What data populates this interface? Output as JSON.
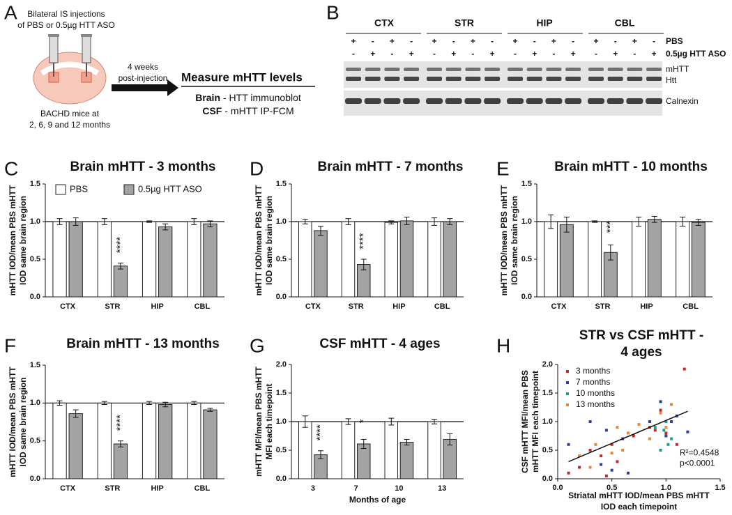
{
  "panel_labels": [
    "A",
    "B",
    "C",
    "D",
    "E",
    "F",
    "G",
    "H"
  ],
  "panel_a": {
    "injection_text": [
      "Bilateral IS injections",
      "of PBS or 0.5µg HTT ASO"
    ],
    "mice_text": [
      "BACHD mice at",
      "2, 6, 9 and 12 months"
    ],
    "arrow_text": [
      "4 weeks",
      "post-injection"
    ],
    "measure_title": "Measure mHTT levels",
    "methods": [
      {
        "tissue": "Brain",
        "method": "- HTT immunoblot"
      },
      {
        "tissue": "CSF",
        "method": "- mHTT IP-FCM"
      }
    ]
  },
  "panel_b": {
    "regions": [
      "CTX",
      "STR",
      "HIP",
      "CBL"
    ],
    "pbs_label": "PBS",
    "aso_label": "0.5µg HTT ASO",
    "pbs_lanes": [
      "+",
      "-",
      "+",
      "-",
      "+",
      "-",
      "+",
      "-",
      "+",
      "-",
      "+",
      "-",
      "+",
      "-",
      "+",
      "-"
    ],
    "aso_lanes": [
      "-",
      "+",
      "-",
      "+",
      "-",
      "+",
      "-",
      "+",
      "-",
      "+",
      "-",
      "+",
      "-",
      "+",
      "-",
      "+"
    ],
    "band_labels": [
      "mHTT",
      "Htt",
      "Calnexin"
    ]
  },
  "chart_data": [
    {
      "type": "bar",
      "title": "Brain mHTT - 3 months",
      "ylabel": [
        "mHTT IOD/mean PBS mHTT",
        "IOD same brain region"
      ],
      "categories": [
        "CTX",
        "STR",
        "HIP",
        "CBL"
      ],
      "series": [
        {
          "name": "PBS",
          "color": "#ffffff",
          "values": [
            1.0,
            1.0,
            1.0,
            1.0
          ],
          "errors": [
            0.04,
            0.04,
            0.01,
            0.04
          ]
        },
        {
          "name": "0.5µg HTT ASO",
          "color": "#a3a3a3",
          "values": [
            1.0,
            0.41,
            0.93,
            0.97
          ],
          "errors": [
            0.05,
            0.04,
            0.04,
            0.04
          ],
          "significance": [
            null,
            "****",
            null,
            null
          ]
        }
      ],
      "ylim": [
        0,
        1.5
      ],
      "yticks": [
        {
          "value": 0,
          "label": "0.0"
        },
        {
          "value": 0.5,
          "label": "0.5"
        },
        {
          "value": 1,
          "label": "1.0"
        },
        {
          "value": 1.5,
          "label": "1.5"
        }
      ],
      "hline": 1.0
    },
    {
      "type": "bar",
      "title": "Brain mHTT - 7 months",
      "ylabel": [
        "mHTT IOD/mean PBS mHTT",
        "IOD same brain region"
      ],
      "categories": [
        "CTX",
        "STR",
        "HIP",
        "CBL"
      ],
      "series": [
        {
          "color": "#ffffff",
          "values": [
            1.0,
            1.0,
            0.99,
            1.0
          ],
          "errors": [
            0.03,
            0.04,
            0.02,
            0.05
          ]
        },
        {
          "color": "#a3a3a3",
          "values": [
            0.88,
            0.43,
            1.01,
            1.0
          ],
          "errors": [
            0.06,
            0.07,
            0.05,
            0.04
          ],
          "significance": [
            null,
            "****",
            null,
            null
          ]
        }
      ],
      "ylim": [
        0,
        1.5
      ],
      "yticks": [
        {
          "value": 0,
          "label": "0.0"
        },
        {
          "value": 0.5,
          "label": "0.5"
        },
        {
          "value": 1,
          "label": "1.0"
        },
        {
          "value": 1.5,
          "label": "1.5"
        }
      ],
      "hline": 1.0
    },
    {
      "type": "bar",
      "title": "Brain mHTT - 10 months",
      "ylabel": [
        "mHTT IOD/mean PBS mHTT",
        "IOD same brain region"
      ],
      "categories": [
        "CTX",
        "STR",
        "HIP",
        "CBL"
      ],
      "series": [
        {
          "color": "#ffffff",
          "values": [
            1.0,
            1.0,
            1.0,
            1.0
          ],
          "errors": [
            0.09,
            0.01,
            0.06,
            0.06
          ]
        },
        {
          "color": "#a3a3a3",
          "values": [
            0.96,
            0.59,
            1.03,
            0.99
          ],
          "errors": [
            0.1,
            0.1,
            0.04,
            0.04
          ],
          "significance": [
            null,
            "***",
            null,
            null
          ]
        }
      ],
      "ylim": [
        0,
        1.5
      ],
      "yticks": [
        {
          "value": 0,
          "label": "0.0"
        },
        {
          "value": 0.5,
          "label": "0.5"
        },
        {
          "value": 1,
          "label": "1.0"
        },
        {
          "value": 1.5,
          "label": "1.5"
        }
      ],
      "hline": 1.0
    },
    {
      "type": "bar",
      "title": "Brain mHTT - 13 months",
      "ylabel": [
        "mHTT IOD/mean PBS mHTT",
        "IOD same brain region"
      ],
      "categories": [
        "CTX",
        "STR",
        "HIP",
        "CBL"
      ],
      "series": [
        {
          "color": "#ffffff",
          "values": [
            1.0,
            1.0,
            1.0,
            1.0
          ],
          "errors": [
            0.03,
            0.02,
            0.02,
            0.02
          ]
        },
        {
          "color": "#a3a3a3",
          "values": [
            0.86,
            0.46,
            0.98,
            0.91
          ],
          "errors": [
            0.05,
            0.04,
            0.03,
            0.02
          ],
          "significance": [
            null,
            "****",
            null,
            null
          ]
        }
      ],
      "ylim": [
        0,
        1.5
      ],
      "yticks": [
        {
          "value": 0,
          "label": "0.0"
        },
        {
          "value": 0.5,
          "label": "0.5"
        },
        {
          "value": 1,
          "label": "1.0"
        },
        {
          "value": 1.5,
          "label": "1.5"
        }
      ],
      "hline": 1.0
    },
    {
      "type": "bar",
      "title": "CSF mHTT - 4 ages",
      "ylabel": [
        "mHTT MFI/mean PBS mHTT",
        "MFI each timepoint"
      ],
      "xlabel": [
        "Months of age"
      ],
      "categories": [
        "3",
        "7",
        "10",
        "13"
      ],
      "series": [
        {
          "color": "#ffffff",
          "values": [
            1.0,
            1.0,
            1.0,
            1.0
          ],
          "errors": [
            0.1,
            0.05,
            0.06,
            0.04
          ]
        },
        {
          "color": "#a3a3a3",
          "values": [
            0.42,
            0.61,
            0.64,
            0.69
          ],
          "errors": [
            0.07,
            0.08,
            0.05,
            0.1
          ],
          "significance": [
            "****",
            "*",
            null,
            null
          ]
        }
      ],
      "ylim": [
        0,
        2
      ],
      "yticks": [
        {
          "value": 0,
          "label": "0.0"
        },
        {
          "value": 0.5,
          "label": "0.5"
        },
        {
          "value": 1,
          "label": "1.0"
        },
        {
          "value": 1.5,
          "label": "1.5"
        },
        {
          "value": 2,
          "label": "2.0"
        }
      ],
      "hline": 1.0
    },
    {
      "type": "scatter",
      "title": [
        "STR vs CSF mHTT -",
        "4 ages"
      ],
      "ylabel": [
        "CSF mHTT MFI/mean PBS",
        "mHTT MFI each timepoint"
      ],
      "xlabel": [
        "Striatal mHTT IOD/mean PBS mHTT",
        "IOD each timepoint"
      ],
      "series": [
        {
          "name": "3 months",
          "color": "#c62828",
          "x": [
            0.1,
            0.2,
            0.3,
            0.45,
            0.5,
            0.55,
            0.7,
            0.85,
            0.95,
            1.0,
            1.1,
            1.17,
            0.4,
            0.9
          ],
          "values": [
            0.1,
            0.2,
            0.5,
            0.05,
            0.6,
            0.3,
            0.75,
            0.9,
            1.2,
            0.8,
            0.6,
            1.92,
            0.4,
            0.85
          ]
        },
        {
          "name": "7 months",
          "color": "#2f3f9e",
          "x": [
            0.1,
            0.3,
            0.4,
            0.45,
            0.6,
            0.65,
            0.85,
            0.95,
            1.0,
            1.05,
            1.1,
            1.2,
            0.5
          ],
          "values": [
            0.6,
            1.0,
            0.25,
            0.85,
            0.7,
            0.1,
            1.0,
            1.35,
            0.75,
            1.0,
            1.1,
            0.82,
            0.15
          ]
        },
        {
          "name": "10 months",
          "color": "#1f9e89",
          "x": [
            0.95,
            1.0,
            1.05,
            0.98,
            1.02,
            0.9
          ],
          "values": [
            0.5,
            1.0,
            0.7,
            0.85,
            0.6,
            0.9
          ]
        },
        {
          "name": "13 months",
          "color": "#e08a3c",
          "x": [
            0.2,
            0.3,
            0.35,
            0.5,
            0.55,
            0.65,
            0.75,
            0.85,
            0.95,
            1.0,
            1.05,
            0.6
          ],
          "values": [
            0.4,
            0.2,
            0.6,
            0.45,
            0.9,
            0.8,
            0.95,
            0.7,
            1.15,
            0.9,
            1.3,
            0.5
          ]
        }
      ],
      "fit_line": {
        "x": [
          0.1,
          1.2
        ],
        "y": [
          0.3,
          1.18
        ]
      },
      "annotations": [
        "R²=0.4548",
        "p<0.0001"
      ],
      "legend": "upper left",
      "xlim": [
        0,
        1.5
      ],
      "xticks": [
        {
          "value": 0,
          "label": "0.0"
        },
        {
          "value": 0.5,
          "label": "0.5"
        },
        {
          "value": 1,
          "label": "1.0"
        },
        {
          "value": 1.5,
          "label": "1.5"
        }
      ],
      "ylim": [
        0,
        2
      ],
      "yticks": [
        {
          "value": 0,
          "label": "0.0"
        },
        {
          "value": 0.5,
          "label": "0.5"
        },
        {
          "value": 1,
          "label": "1.0"
        },
        {
          "value": 1.5,
          "label": "1.5"
        },
        {
          "value": 2,
          "label": "2.0"
        }
      ]
    }
  ]
}
